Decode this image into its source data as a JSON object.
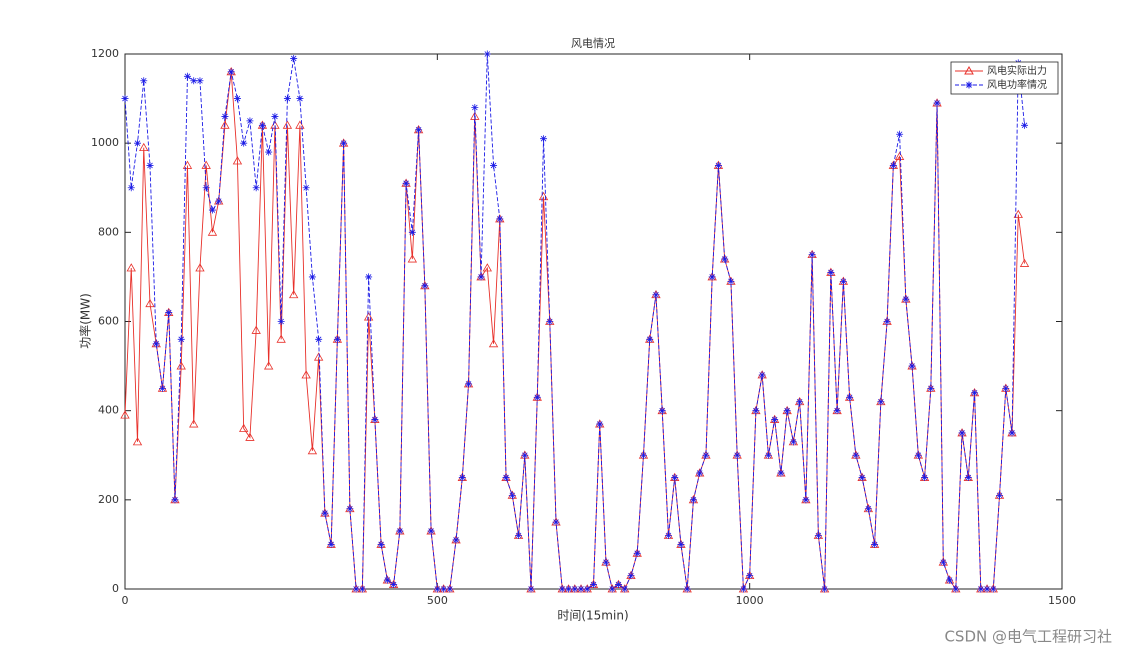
{
  "chart_data": {
    "type": "line",
    "title": "风电情况",
    "x_label": "时间(15min)",
    "y_label": "功率(MW)",
    "x": [
      0,
      10,
      20,
      30,
      40,
      50,
      60,
      70,
      80,
      90,
      100,
      110,
      120,
      130,
      140,
      150,
      160,
      170,
      180,
      190,
      200,
      210,
      220,
      230,
      240,
      250,
      260,
      270,
      280,
      290,
      300,
      310,
      320,
      330,
      340,
      350,
      360,
      370,
      380,
      390,
      400,
      410,
      420,
      430,
      440,
      450,
      460,
      470,
      480,
      490,
      500,
      510,
      520,
      530,
      540,
      550,
      560,
      570,
      580,
      590,
      600,
      610,
      620,
      630,
      640,
      650,
      660,
      670,
      680,
      690,
      700,
      710,
      720,
      730,
      740,
      750,
      760,
      770,
      780,
      790,
      800,
      810,
      820,
      830,
      840,
      850,
      860,
      870,
      880,
      890,
      900,
      910,
      920,
      930,
      940,
      950,
      960,
      970,
      980,
      990,
      1000,
      1010,
      1020,
      1030,
      1040,
      1050,
      1060,
      1070,
      1080,
      1090,
      1100,
      1110,
      1120,
      1130,
      1140,
      1150,
      1160,
      1170,
      1180,
      1190,
      1200,
      1210,
      1220,
      1230,
      1240,
      1250,
      1260,
      1270,
      1280,
      1290,
      1300,
      1310,
      1320,
      1330,
      1340,
      1350,
      1360,
      1370,
      1380,
      1390,
      1400,
      1410,
      1420,
      1430,
      1440
    ],
    "series": [
      {
        "name": "风电实际出力",
        "color": "#e8302a",
        "marker": "triangle",
        "dash": false,
        "values": [
          390,
          720,
          330,
          990,
          640,
          550,
          450,
          620,
          200,
          500,
          950,
          370,
          720,
          950,
          800,
          870,
          1040,
          1160,
          960,
          360,
          340,
          580,
          1040,
          500,
          1040,
          560,
          1040,
          660,
          1040,
          480,
          310,
          520,
          170,
          100,
          560,
          1000,
          180,
          0,
          0,
          610,
          380,
          100,
          20,
          10,
          130,
          910,
          740,
          1030,
          680,
          130,
          0,
          0,
          0,
          110,
          250,
          460,
          1060,
          700,
          720,
          550,
          830,
          250,
          210,
          120,
          300,
          0,
          430,
          880,
          600,
          150,
          0,
          0,
          0,
          0,
          0,
          10,
          370,
          60,
          0,
          10,
          0,
          30,
          80,
          300,
          560,
          660,
          400,
          120,
          250,
          100,
          0,
          200,
          260,
          300,
          700,
          950,
          740,
          690,
          300,
          0,
          30,
          400,
          480,
          300,
          380,
          260,
          400,
          330,
          420,
          200,
          750,
          120,
          0,
          710,
          400,
          690,
          430,
          300,
          250,
          180,
          100,
          420,
          600,
          950,
          970,
          650,
          500,
          300,
          250,
          450,
          1090,
          60,
          20,
          0,
          350,
          250,
          440,
          0,
          0,
          0,
          210,
          450,
          350,
          840,
          730
        ]
      },
      {
        "name": "风电功率情况",
        "color": "#1a1ae6",
        "marker": "star",
        "dash": true,
        "values": [
          1100,
          900,
          1000,
          1140,
          950,
          550,
          450,
          620,
          200,
          560,
          1150,
          1140,
          1140,
          900,
          850,
          870,
          1060,
          1160,
          1100,
          1000,
          1050,
          900,
          1040,
          980,
          1060,
          600,
          1100,
          1190,
          1100,
          900,
          700,
          560,
          170,
          100,
          560,
          1000,
          180,
          0,
          0,
          700,
          380,
          100,
          20,
          10,
          130,
          910,
          800,
          1030,
          680,
          130,
          0,
          0,
          0,
          110,
          250,
          460,
          1080,
          700,
          1200,
          950,
          830,
          250,
          210,
          120,
          300,
          0,
          430,
          1010,
          600,
          150,
          0,
          0,
          0,
          0,
          0,
          10,
          370,
          60,
          0,
          10,
          0,
          30,
          80,
          300,
          560,
          660,
          400,
          120,
          250,
          100,
          0,
          200,
          260,
          300,
          700,
          950,
          740,
          690,
          300,
          0,
          30,
          400,
          480,
          300,
          380,
          260,
          400,
          330,
          420,
          200,
          750,
          120,
          0,
          710,
          400,
          690,
          430,
          300,
          250,
          180,
          100,
          420,
          600,
          950,
          1020,
          650,
          500,
          300,
          250,
          450,
          1090,
          60,
          20,
          0,
          350,
          250,
          440,
          0,
          0,
          0,
          210,
          450,
          350,
          1180,
          1040
        ]
      }
    ],
    "xlim": [
      0,
      1500
    ],
    "xticks": [
      0,
      500,
      1000,
      1500
    ],
    "ylim": [
      0,
      1200
    ],
    "yticks": [
      0,
      200,
      400,
      600,
      800,
      1000,
      1200
    ],
    "grid": false,
    "legend": "northeast"
  },
  "watermark": "CSDN @电气工程研习社"
}
